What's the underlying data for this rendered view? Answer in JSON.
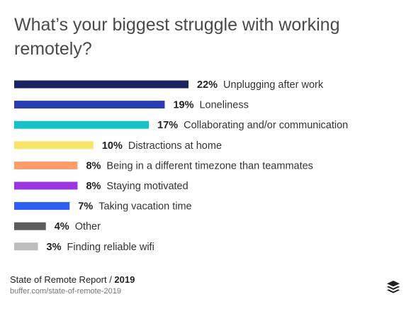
{
  "title": "What’s your biggest struggle with working remotely?",
  "footer": {
    "report_name": "State of Remote Report",
    "separator": " / ",
    "year": "2019",
    "url": "buffer.com/state-of-remote-2019"
  },
  "logo": {
    "icon": "buffer-stack-logo-icon",
    "color": "#222222"
  },
  "chart_data": {
    "type": "bar",
    "orientation": "horizontal",
    "title": "What’s your biggest struggle with working remotely?",
    "categories": [
      "Unplugging after work",
      "Loneliness",
      "Collaborating and/or communication",
      "Distractions at home",
      "Being in a different timezone than teammates",
      "Staying motivated",
      "Taking vacation time",
      "Other",
      "Finding reliable wifi"
    ],
    "values": [
      22,
      19,
      17,
      10,
      8,
      8,
      7,
      4,
      3
    ],
    "value_labels": [
      "22%",
      "19%",
      "17%",
      "10%",
      "8%",
      "8%",
      "7%",
      "4%",
      "3%"
    ],
    "colors": [
      "#1b2363",
      "#2a3db0",
      "#17c2c6",
      "#f7e56b",
      "#ff9c6a",
      "#9b35e0",
      "#2d5ff0",
      "#5c5c5c",
      "#bdbdbd"
    ],
    "unit": "%",
    "xlim": [
      0,
      22
    ],
    "grid": false,
    "legend": "none"
  }
}
